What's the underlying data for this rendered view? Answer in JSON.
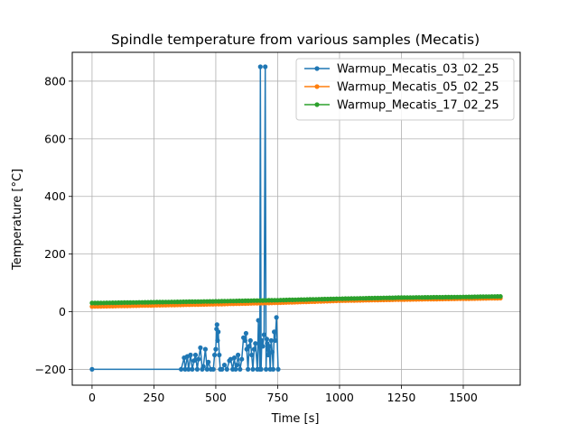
{
  "chart_data": {
    "type": "line",
    "title": "Spindle temperature from various samples (Mecatis)",
    "xlabel": "Time [s]",
    "ylabel": "Temperature [°C]",
    "xlim": [
      -80,
      1730
    ],
    "ylim": [
      -255,
      900
    ],
    "xticks": [
      0,
      250,
      500,
      750,
      1000,
      1250,
      1500
    ],
    "yticks": [
      -200,
      0,
      200,
      400,
      600,
      800
    ],
    "grid": true,
    "legend_position": "upper right",
    "series": [
      {
        "name": "Warmup_Mecatis_03_02_25",
        "color": "#1f77b4",
        "x": [
          0,
          360,
          372,
          376,
          385,
          390,
          398,
          405,
          412,
          418,
          425,
          430,
          438,
          445,
          450,
          458,
          465,
          470,
          480,
          490,
          495,
          500,
          503,
          505,
          507,
          510,
          514,
          518,
          525,
          535,
          545,
          555,
          560,
          568,
          575,
          580,
          585,
          590,
          598,
          605,
          612,
          618,
          622,
          625,
          630,
          635,
          640,
          645,
          650,
          655,
          660,
          668,
          672,
          678,
          680,
          683,
          686,
          690,
          695,
          700,
          703,
          706,
          708,
          712,
          716,
          720,
          724,
          728,
          732,
          736,
          740,
          745,
          752
        ],
        "y": [
          -200,
          -200,
          -160,
          -200,
          -155,
          -200,
          -150,
          -200,
          -170,
          -150,
          -200,
          -165,
          -125,
          -200,
          -190,
          -130,
          -200,
          -175,
          -200,
          -200,
          -150,
          -130,
          -60,
          -45,
          -100,
          -70,
          -150,
          -200,
          -200,
          -185,
          -200,
          -170,
          -165,
          -200,
          -160,
          -200,
          -185,
          -150,
          -200,
          -165,
          -90,
          -100,
          -75,
          -130,
          -200,
          -120,
          -100,
          -150,
          -200,
          -130,
          -110,
          -200,
          -30,
          -200,
          850,
          -200,
          -100,
          -120,
          -80,
          850,
          -200,
          -95,
          -110,
          -150,
          -120,
          -200,
          -100,
          -140,
          -200,
          -70,
          -100,
          -20,
          -200
        ]
      },
      {
        "name": "Warmup_Mecatis_05_02_25",
        "color": "#ff7f0e",
        "x": [
          0,
          250,
          500,
          750,
          900,
          1000,
          1250,
          1500,
          1650
        ],
        "y": [
          18,
          22,
          26,
          31,
          35,
          38,
          42,
          45,
          47
        ]
      },
      {
        "name": "Warmup_Mecatis_17_02_25",
        "color": "#2ca02c",
        "x": [
          0,
          250,
          500,
          750,
          1000,
          1250,
          1500,
          1650
        ],
        "y": [
          30,
          33,
          36,
          40,
          45,
          49,
          51,
          53
        ]
      }
    ]
  }
}
